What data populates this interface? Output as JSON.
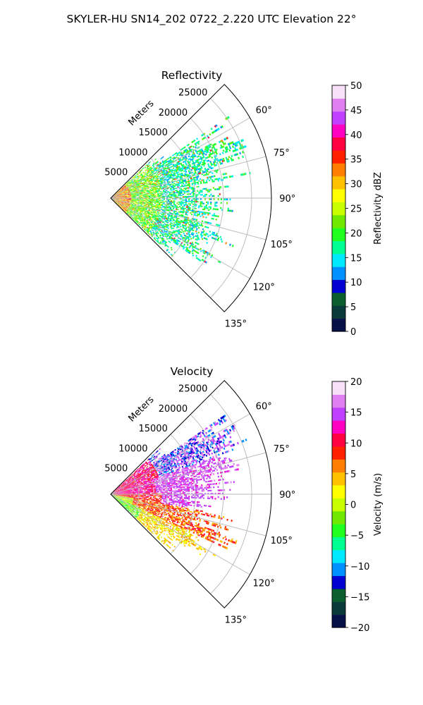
{
  "figure": {
    "title": "SKYLER-HU  SN14_202  0722_2.220 UTC Elevation 22°"
  },
  "chart_data": [
    {
      "type": "heatmap",
      "projection": "polar-sector",
      "title": "Reflectivity",
      "radial_label": "Meters",
      "r_ticks": [
        "5000",
        "10000",
        "15000",
        "20000",
        "25000"
      ],
      "r_values": [
        5000,
        10000,
        15000,
        20000,
        25000
      ],
      "r_max": 28500,
      "theta_ticks": [
        "60°",
        "75°",
        "90°",
        "105°",
        "120°",
        "135°"
      ],
      "theta_values": [
        60,
        75,
        90,
        105,
        120,
        135
      ],
      "theta_range": [
        45,
        135
      ],
      "grid": true,
      "colorbar": {
        "label": "Reflectivity dBZ",
        "min": 0,
        "max": 50,
        "ticks": [
          "0",
          "5",
          "10",
          "15",
          "20",
          "25",
          "30",
          "35",
          "40",
          "45",
          "50"
        ],
        "tick_values": [
          0,
          5,
          10,
          15,
          20,
          25,
          30,
          35,
          40,
          45,
          50
        ],
        "stops": [
          "#08104a",
          "#0a3a3a",
          "#0b5e2e",
          "#0000d0",
          "#0090ff",
          "#00e8ff",
          "#00ff90",
          "#20ff20",
          "#70e800",
          "#c8ff00",
          "#ffff00",
          "#ffc000",
          "#ff8000",
          "#ff2000",
          "#ff0040",
          "#ff00c0",
          "#c040ff",
          "#e080f0",
          "#f8e0f8"
        ]
      }
    },
    {
      "type": "heatmap",
      "projection": "polar-sector",
      "title": "Velocity",
      "radial_label": "Meters",
      "r_ticks": [
        "5000",
        "10000",
        "15000",
        "20000",
        "25000"
      ],
      "r_values": [
        5000,
        10000,
        15000,
        20000,
        25000
      ],
      "r_max": 28500,
      "theta_ticks": [
        "60°",
        "75°",
        "90°",
        "105°",
        "120°",
        "135°"
      ],
      "theta_values": [
        60,
        75,
        90,
        105,
        120,
        135
      ],
      "theta_range": [
        45,
        135
      ],
      "grid": true,
      "colorbar": {
        "label": "Velocity (m/s)",
        "min": -20,
        "max": 20,
        "ticks": [
          "−20",
          "−15",
          "−10",
          "−5",
          "0",
          "5",
          "10",
          "15",
          "20"
        ],
        "tick_values": [
          -20,
          -15,
          -10,
          -5,
          0,
          5,
          10,
          15,
          20
        ],
        "stops": [
          "#08104a",
          "#0a3a3a",
          "#0b5e2e",
          "#0000d0",
          "#0090ff",
          "#00e8ff",
          "#00ff90",
          "#20ff20",
          "#70e800",
          "#c8ff00",
          "#ffff00",
          "#ffc000",
          "#ff8000",
          "#ff2000",
          "#ff0040",
          "#ff00c0",
          "#c040ff",
          "#e080f0",
          "#f8e0f8"
        ]
      }
    }
  ]
}
